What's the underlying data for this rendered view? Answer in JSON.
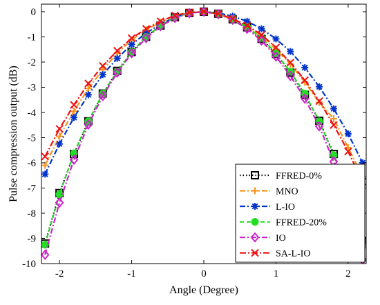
{
  "chart_data": {
    "type": "line",
    "title": "",
    "xlabel": "Angle (Degree)",
    "ylabel": "Pulse compression output (dB)",
    "xlim": [
      -2.25,
      2.25
    ],
    "ylim": [
      -10,
      0.3
    ],
    "xticks": [
      -2,
      -1,
      0,
      1,
      2
    ],
    "xtick_labels": [
      "-2",
      "-1",
      "0",
      "1",
      "2"
    ],
    "yticks": [
      0,
      -1,
      -2,
      -3,
      -4,
      -5,
      -6,
      -7,
      -8,
      -9,
      -10
    ],
    "ytick_labels": [
      "0",
      "-1",
      "-2",
      "-3",
      "-4",
      "-5",
      "-6",
      "-7",
      "-8",
      "-9",
      "-10"
    ],
    "grid": false,
    "legend_position": "bottom-right",
    "x": [
      -2.2,
      -2.0,
      -1.8,
      -1.6,
      -1.4,
      -1.2,
      -1.0,
      -0.8,
      -0.6,
      -0.4,
      -0.2,
      0.0,
      0.2,
      0.4,
      0.6,
      0.8,
      1.0,
      1.2,
      1.4,
      1.6,
      1.8,
      2.0,
      2.2
    ],
    "series": [
      {
        "name": "FFRED-0%",
        "color": "#000000",
        "dash": "1.5,3",
        "marker": "square",
        "values": [
          -9.2,
          -7.2,
          -5.65,
          -4.35,
          -3.25,
          -2.35,
          -1.6,
          -1.0,
          -0.55,
          -0.22,
          -0.05,
          0.0,
          -0.08,
          -0.3,
          -0.62,
          -1.08,
          -1.68,
          -2.42,
          -3.3,
          -4.33,
          -5.65,
          -7.2,
          -9.1
        ]
      },
      {
        "name": "MNO",
        "color": "#F7941D",
        "dash": "8,3,2,3",
        "marker": "plus",
        "values": [
          -6.1,
          -4.95,
          -3.95,
          -3.05,
          -2.3,
          -1.65,
          -1.12,
          -0.72,
          -0.42,
          -0.18,
          -0.04,
          0.0,
          -0.1,
          -0.3,
          -0.62,
          -1.0,
          -1.5,
          -2.08,
          -2.8,
          -3.6,
          -4.25,
          -5.4,
          -6.55
        ]
      },
      {
        "name": "L-IO",
        "color": "#0033CC",
        "dash": "8,3,2,3",
        "marker": "asterisk",
        "values": [
          -6.45,
          -5.25,
          -4.2,
          -3.3,
          -2.5,
          -1.85,
          -1.3,
          -0.85,
          -0.5,
          -0.22,
          -0.05,
          0.0,
          -0.05,
          -0.18,
          -0.38,
          -0.68,
          -1.08,
          -1.58,
          -2.22,
          -2.98,
          -3.85,
          -4.85,
          -6.0
        ]
      },
      {
        "name": "FFRED-20%",
        "color": "#22DD22",
        "dash": "6,4",
        "marker": "circle",
        "values": [
          -9.25,
          -7.25,
          -5.62,
          -4.35,
          -3.25,
          -2.38,
          -1.6,
          -1.0,
          -0.55,
          -0.22,
          -0.05,
          0.0,
          -0.08,
          -0.28,
          -0.6,
          -1.05,
          -1.65,
          -2.38,
          -3.25,
          -4.35,
          -5.7,
          -7.28,
          -9.3
        ]
      },
      {
        "name": "IO",
        "color": "#CC22CC",
        "dash": "8,3,2,3",
        "marker": "diamond",
        "values": [
          -9.65,
          -7.58,
          -5.88,
          -4.48,
          -3.35,
          -2.42,
          -1.65,
          -1.05,
          -0.58,
          -0.25,
          -0.06,
          0.0,
          -0.1,
          -0.32,
          -0.68,
          -1.15,
          -1.78,
          -2.55,
          -3.45,
          -4.55,
          -5.95,
          -7.75,
          -9.85
        ]
      },
      {
        "name": "SA-L-IO",
        "color": "#EE1111",
        "dash": "9,3,2,3",
        "marker": "x",
        "values": [
          -5.75,
          -4.65,
          -3.7,
          -2.85,
          -2.15,
          -1.55,
          -1.05,
          -0.68,
          -0.38,
          -0.15,
          -0.03,
          0.0,
          -0.08,
          -0.28,
          -0.55,
          -0.92,
          -1.42,
          -2.02,
          -2.72,
          -3.55,
          -4.5,
          -5.55,
          -6.75
        ]
      }
    ]
  }
}
